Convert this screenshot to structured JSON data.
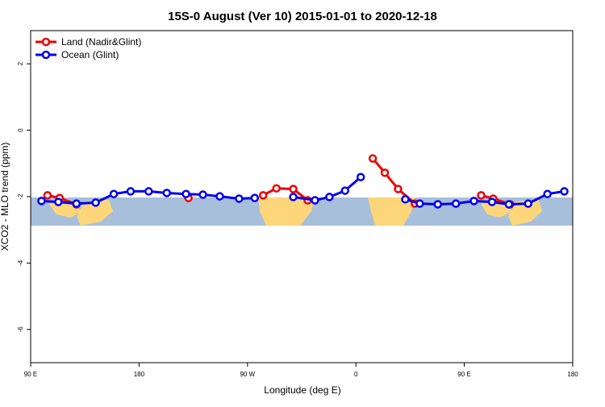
{
  "chart_data": {
    "type": "line",
    "title": "15S-0 August (Ver 10)   2015-01-01 to 2020-12-18",
    "xlabel": "Longitude (deg E)",
    "ylabel": "XCO2 - MLO trend (ppm)",
    "xlim": [
      90,
      540
    ],
    "xticks": [
      {
        "value": 90,
        "label": "90 E"
      },
      180,
      {
        "value": 270,
        "label": "90 W"
      },
      {
        "value": 360,
        "label": "0"
      },
      {
        "value": 450,
        "label": "90 E"
      },
      {
        "value": 540,
        "label": "180"
      }
    ],
    "ylim": [
      -7,
      3
    ],
    "yticks": [
      -6,
      -4,
      -2,
      0,
      2
    ],
    "legend": "top-left",
    "series": [
      {
        "name": "Land (Nadir&Glint)",
        "color": "#ee0000",
        "x": [
          104,
          114,
          128,
          null,
          221,
          null,
          283,
          294,
          308,
          320,
          null,
          374,
          384,
          395,
          409,
          null,
          464,
          474,
          488
        ],
        "values": [
          -1.96,
          -2.04,
          -2.23,
          null,
          -2.04,
          null,
          -1.96,
          -1.75,
          -1.77,
          -2.11,
          null,
          -0.85,
          -1.28,
          -1.77,
          -2.21,
          null,
          -1.96,
          -2.06,
          -2.23
        ]
      },
      {
        "name": "Ocean (Glint)",
        "color": "#0000ee",
        "x": [
          99,
          113,
          128,
          144,
          159,
          173,
          188,
          203,
          219,
          233,
          247,
          263,
          276,
          null,
          308,
          326,
          338,
          351,
          364,
          null,
          401,
          413,
          428,
          443,
          458,
          473,
          487,
          503,
          519,
          533
        ],
        "values": [
          -2.13,
          -2.16,
          -2.21,
          -2.18,
          -1.92,
          -1.84,
          -1.84,
          -1.89,
          -1.92,
          -1.94,
          -1.99,
          -2.06,
          -2.04,
          null,
          -2.01,
          -2.11,
          -2.01,
          -1.82,
          -1.41,
          null,
          -2.08,
          -2.21,
          -2.23,
          -2.21,
          -2.13,
          -2.16,
          -2.23,
          -2.21,
          -1.92,
          -1.84
        ]
      }
    ]
  }
}
